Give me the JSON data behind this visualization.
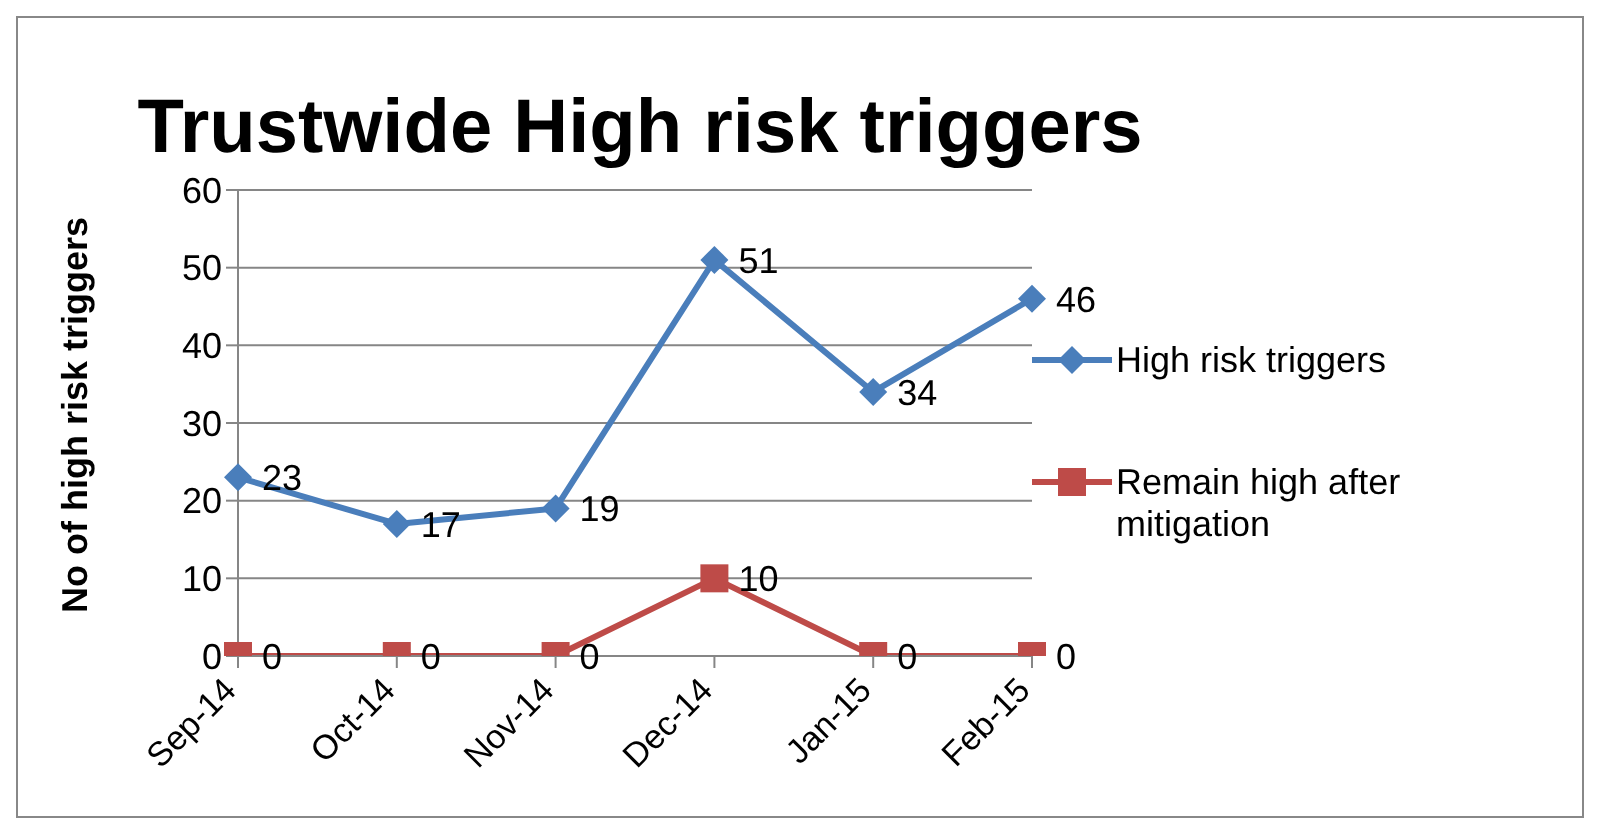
{
  "chart_data": {
    "type": "line",
    "title": "Trustwide High risk triggers",
    "ylabel": "No of high risk triggers",
    "categories": [
      "Sep-14",
      "Oct-14",
      "Nov-14",
      "Dec-14",
      "Jan-15",
      "Feb-15"
    ],
    "series": [
      {
        "name": "High risk triggers",
        "color": "#4a7ebb",
        "marker": "diamond",
        "values": [
          23,
          17,
          19,
          51,
          34,
          46
        ]
      },
      {
        "name": "Remain high after mitigation",
        "color": "#be4b48",
        "marker": "square",
        "values": [
          0,
          0,
          0,
          10,
          0,
          0
        ]
      }
    ],
    "ylim": [
      0,
      60
    ],
    "yticks": [
      0,
      10,
      20,
      30,
      40,
      50,
      60
    ],
    "grid": "y",
    "legend": "right",
    "data_labels": true
  }
}
